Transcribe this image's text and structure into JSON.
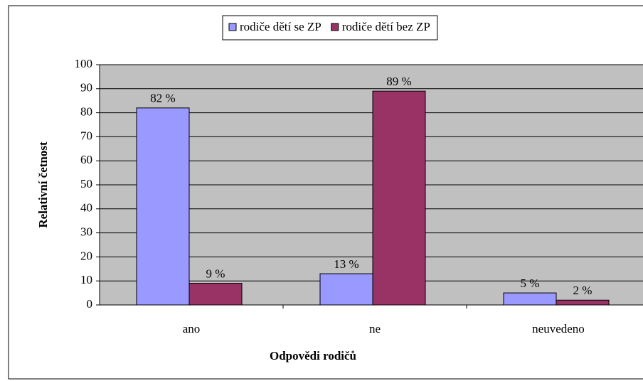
{
  "chart_data": {
    "type": "bar",
    "categories": [
      "ano",
      "ne",
      "neuvedeno"
    ],
    "series": [
      {
        "name": "rodiče dětí se ZP",
        "color": "#9999ff",
        "values": [
          82,
          13,
          5
        ],
        "value_labels": [
          "82 %",
          "13 %",
          "5 %"
        ]
      },
      {
        "name": "rodiče dětí bez ZP",
        "color": "#993366",
        "values": [
          9,
          89,
          2
        ],
        "value_labels": [
          "9 %",
          "89 %",
          "2 %"
        ]
      }
    ],
    "x_label": "Odpovědi rodičů",
    "y_label": "Relativní četnost",
    "ylim": [
      0,
      100
    ],
    "yticks": [
      0,
      10,
      20,
      30,
      40,
      50,
      60,
      70,
      80,
      90,
      100
    ],
    "grid": true,
    "legend": "top"
  }
}
